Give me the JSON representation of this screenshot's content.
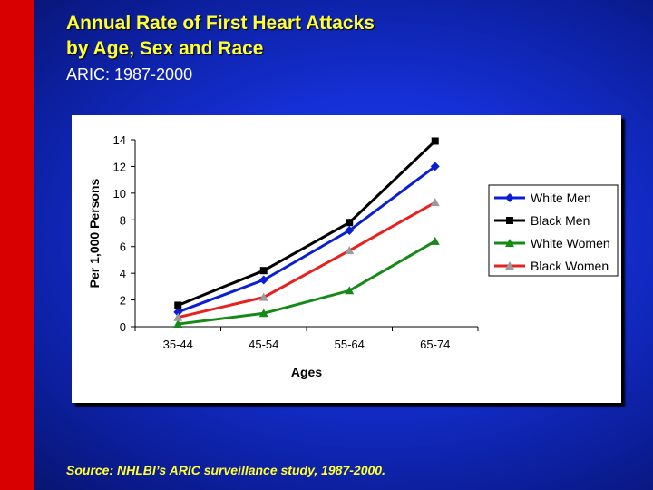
{
  "slide": {
    "title_line1": "Annual Rate of First Heart Attacks",
    "title_line2": "by Age, Sex and Race",
    "subtitle": "ARIC: 1987-2000",
    "source": "Source: NHLBI’s ARIC surveillance study, 1987-2000."
  },
  "colors": {
    "background": "#1530d6",
    "accent_bar": "#d80000",
    "title_text": "#ffff33"
  },
  "chart_data": {
    "type": "line",
    "title": "",
    "xlabel": "Ages",
    "ylabel": "Per 1,000 Persons",
    "categories": [
      "35-44",
      "45-54",
      "55-64",
      "65-74"
    ],
    "ylim": [
      0,
      14
    ],
    "yticks": [
      0,
      2,
      4,
      6,
      8,
      10,
      12,
      14
    ],
    "grid": false,
    "legend_position": "right",
    "series": [
      {
        "name": "White Men",
        "values": [
          1.1,
          3.5,
          7.2,
          12.0
        ],
        "color": "#0a1fd2",
        "marker": "diamond"
      },
      {
        "name": "Black Men",
        "values": [
          1.6,
          4.2,
          7.8,
          13.9
        ],
        "color": "#000000",
        "marker": "square"
      },
      {
        "name": "White Women",
        "values": [
          0.2,
          1.0,
          2.7,
          6.4
        ],
        "color": "#168a16",
        "marker": "triangle"
      },
      {
        "name": "Black Women",
        "values": [
          0.7,
          2.2,
          5.7,
          9.3
        ],
        "color": "#e82020",
        "marker": "triangle-gray"
      }
    ]
  }
}
